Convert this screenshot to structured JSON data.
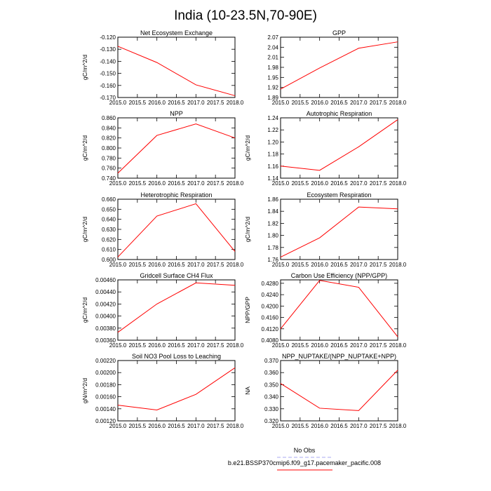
{
  "title": "India (10-23.5N,70-90E)",
  "legend": [
    {
      "label": "No Obs",
      "color": "#a8a8f0",
      "dashed": true
    },
    {
      "label": "b.e21.BSSP370cmip6.f09_g17.pacemaker_pacific.008",
      "color": "#ff0000",
      "dashed": false
    }
  ],
  "chart_data": [
    {
      "type": "line",
      "title": "Net Ecosystem Exchange",
      "ylabel": "gC/m^2/d",
      "x": [
        2015,
        2016,
        2017,
        2018
      ],
      "xticks": [
        "2015.0",
        "2015.5",
        "2016.0",
        "2016.5",
        "2017.0",
        "2017.5",
        "2018.0"
      ],
      "xlim": [
        2015,
        2018
      ],
      "yticks": [
        "-0.120",
        "-0.130",
        "-0.140",
        "-0.150",
        "-0.160",
        "-0.170"
      ],
      "ylim": [
        -0.17,
        -0.12
      ],
      "series": [
        {
          "values": [
            -0.1275,
            -0.141,
            -0.1595,
            -0.1685
          ],
          "color": "#ff0000"
        }
      ]
    },
    {
      "type": "line",
      "title": "GPP",
      "ylabel": "",
      "x": [
        2015,
        2016,
        2017,
        2018
      ],
      "xticks": [
        "2015.0",
        "2015.5",
        "2016.0",
        "2016.5",
        "2017.0",
        "2017.5",
        "2018.0"
      ],
      "xlim": [
        2015,
        2018
      ],
      "yticks": [
        "2.07",
        "2.04",
        "2.01",
        "1.98",
        "1.95",
        "1.92",
        "1.89"
      ],
      "ylim": [
        1.89,
        2.07
      ],
      "series": [
        {
          "values": [
            1.915,
            1.978,
            2.037,
            2.056
          ],
          "color": "#ff0000"
        }
      ]
    },
    {
      "type": "line",
      "title": "NPP",
      "ylabel": "gC/m^2/d",
      "x": [
        2015,
        2016,
        2017,
        2018
      ],
      "xticks": [
        "2015.0",
        "2015.5",
        "2016.0",
        "2016.5",
        "2017.0",
        "2017.5",
        "2018.0"
      ],
      "xlim": [
        2015,
        2018
      ],
      "yticks": [
        "0.860",
        "0.840",
        "0.820",
        "0.800",
        "0.780",
        "0.760",
        "0.740"
      ],
      "ylim": [
        0.74,
        0.86
      ],
      "series": [
        {
          "values": [
            0.75,
            0.825,
            0.848,
            0.82
          ],
          "color": "#ff0000"
        }
      ]
    },
    {
      "type": "line",
      "title": "Autotrophic Respiration",
      "ylabel": "gC/m^2/d",
      "x": [
        2015,
        2016,
        2017,
        2018
      ],
      "xticks": [
        "2015.0",
        "2015.5",
        "2016.0",
        "2016.5",
        "2017.0",
        "2017.5",
        "2018.0"
      ],
      "xlim": [
        2015,
        2018
      ],
      "yticks": [
        "1.24",
        "1.22",
        "1.20",
        "1.18",
        "1.16",
        "1.14"
      ],
      "ylim": [
        1.14,
        1.24
      ],
      "series": [
        {
          "values": [
            1.16,
            1.153,
            1.192,
            1.237
          ],
          "color": "#ff0000"
        }
      ]
    },
    {
      "type": "line",
      "title": "Heterotrophic Respiration",
      "ylabel": "gC/m^2/d",
      "x": [
        2015,
        2016,
        2017,
        2018
      ],
      "xticks": [
        "2015.0",
        "2015.5",
        "2016.0",
        "2016.5",
        "2017.0",
        "2017.5",
        "2018.0"
      ],
      "xlim": [
        2015,
        2018
      ],
      "yticks": [
        "0.660",
        "0.650",
        "0.640",
        "0.630",
        "0.620",
        "0.610",
        "0.600"
      ],
      "ylim": [
        0.6,
        0.66
      ],
      "series": [
        {
          "values": [
            0.6025,
            0.6432,
            0.6555,
            0.608
          ],
          "color": "#ff0000"
        }
      ]
    },
    {
      "type": "line",
      "title": "Ecosystem Respiration",
      "ylabel": "gC/m^2/d",
      "x": [
        2015,
        2016,
        2017,
        2018
      ],
      "xticks": [
        "2015.0",
        "2015.5",
        "2016.0",
        "2016.5",
        "2017.0",
        "2017.5",
        "2018.0"
      ],
      "xlim": [
        2015,
        2018
      ],
      "yticks": [
        "1.86",
        "1.84",
        "1.82",
        "1.80",
        "1.78",
        "1.76"
      ],
      "ylim": [
        1.76,
        1.86
      ],
      "series": [
        {
          "values": [
            1.764,
            1.796,
            1.847,
            1.844
          ],
          "color": "#ff0000"
        }
      ]
    },
    {
      "type": "line",
      "title": "Gridcell Surface CH4 Flux",
      "ylabel": "gC/m^2/d",
      "x": [
        2015,
        2016,
        2017,
        2018
      ],
      "xticks": [
        "2015.0",
        "2015.5",
        "2016.0",
        "2016.5",
        "2017.0",
        "2017.5",
        "2018.0"
      ],
      "xlim": [
        2015,
        2018
      ],
      "yticks": [
        "0.00460",
        "0.00440",
        "0.00420",
        "0.00400",
        "0.00380",
        "0.00360"
      ],
      "ylim": [
        0.0036,
        0.0046
      ],
      "series": [
        {
          "values": [
            0.00373,
            0.0042,
            0.00455,
            0.00451
          ],
          "color": "#ff0000"
        }
      ]
    },
    {
      "type": "line",
      "title": "Carbon Use Efficiency (NPP/GPP)",
      "ylabel": "NPP/GPP",
      "x": [
        2015,
        2016,
        2017,
        2018
      ],
      "xticks": [
        "2015.0",
        "2015.5",
        "2016.0",
        "2016.5",
        "2017.0",
        "2017.5",
        "2018.0"
      ],
      "xlim": [
        2015,
        2018
      ],
      "yticks": [
        "0.4280",
        "0.4240",
        "0.4200",
        "0.4160",
        "0.4120",
        "0.4080"
      ],
      "ylim": [
        0.408,
        0.4292
      ],
      "series": [
        {
          "values": [
            0.412,
            0.429,
            0.4266,
            0.4092
          ],
          "color": "#ff0000"
        }
      ]
    },
    {
      "type": "line",
      "title": "Soil NO3 Pool Loss to Leaching",
      "ylabel": "gN/m^2/d",
      "x": [
        2015,
        2016,
        2017,
        2018
      ],
      "xticks": [
        "2015.0",
        "2015.5",
        "2016.0",
        "2016.5",
        "2017.0",
        "2017.5",
        "2018.0"
      ],
      "xlim": [
        2015,
        2018
      ],
      "yticks": [
        "0.00220",
        "0.00200",
        "0.00180",
        "0.00160",
        "0.00140",
        "0.00120"
      ],
      "ylim": [
        0.0012,
        0.0022
      ],
      "series": [
        {
          "values": [
            0.00146,
            0.00138,
            0.00164,
            0.00208
          ],
          "color": "#ff0000"
        }
      ]
    },
    {
      "type": "line",
      "title": "NPP_NUPTAKE/(NPP_NUPTAKE+NPP)",
      "ylabel": "NA",
      "x": [
        2015,
        2016,
        2017,
        2018
      ],
      "xticks": [
        "2015.0",
        "2015.5",
        "2016.0",
        "2016.5",
        "2017.0",
        "2017.5",
        "2018.0"
      ],
      "xlim": [
        2015,
        2018
      ],
      "yticks": [
        "0.370",
        "0.360",
        "0.350",
        "0.340",
        "0.330",
        "0.320"
      ],
      "ylim": [
        0.32,
        0.37
      ],
      "series": [
        {
          "values": [
            0.351,
            0.3305,
            0.3285,
            0.362
          ],
          "color": "#ff0000"
        }
      ]
    }
  ]
}
